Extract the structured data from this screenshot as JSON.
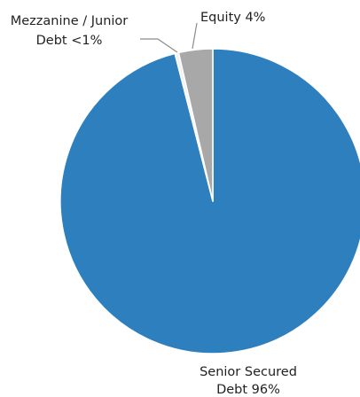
{
  "chart_data": {
    "type": "pie",
    "slices": [
      {
        "label_lines": [
          "Senior Secured",
          "Debt 96%"
        ],
        "value": 96,
        "color": "#2e7fbd"
      },
      {
        "label_lines": [
          "Mezzanine / Junior",
          "Debt <1%"
        ],
        "value": 0.4,
        "color": "#f2f2f2"
      },
      {
        "label_lines": [
          "Equity 4%"
        ],
        "value": 3.6,
        "color": "#a8a8a8"
      }
    ],
    "stroke_color": "#ffffff",
    "leader_color": "#8c8c8c"
  }
}
